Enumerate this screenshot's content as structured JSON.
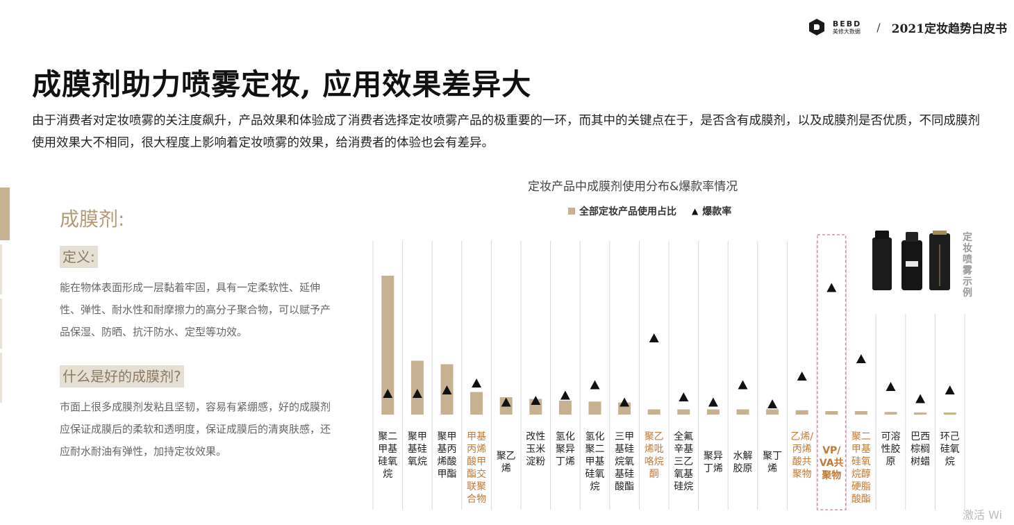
{
  "brand": {
    "logo_en": "BEBD",
    "logo_cn": "美修大数据",
    "separator": "/",
    "report_title": "2021定妆趋势白皮书"
  },
  "title": "成膜剂助力喷雾定妆, 应用效果差异大",
  "intro": "由于消费者对定妆喷雾的关注度飙升，产品效果和体验成了消费者选择定妆喷雾产品的极重要的一环，而其中的关键点在于，是否含有成膜剂，以及成膜剂是否优质，不同成膜剂使用效果大不相同，很大程度上影响着定妆喷雾的效果，给消费者的体验也会有差异。",
  "definition": {
    "heading": "成膜剂:",
    "tag1": "定义:",
    "text1": "能在物体表面形成一层黏着牢固，具有一定柔软性、延伸性、弹性、耐水性和耐摩擦力的高分子聚合物，可以赋予产品保湿、防晒、抗汗防水、定型等功效。",
    "tag2": "什么是好的成膜剂?",
    "text2": "市面上很多成膜剂发粘且坚韧，容易有紧绷感，好的成膜剂应保证成膜后的柔软和透明度，保证成膜后的清爽肤感，还应耐水耐油有弹性，加持定妆效果。"
  },
  "side_label": "定妆喷雾示例",
  "watermark": "激活 Wi",
  "colors": {
    "bar": "#c7b191",
    "highlight_text": "#c07a3a",
    "focus_box": "#d98aa8",
    "marker": "#111111"
  },
  "chart_data": {
    "type": "bar",
    "title": "定妆产品中成膜剂使用分布&爆款率情况",
    "legend_position": "top-center",
    "grid": false,
    "ylim": [
      0,
      100
    ],
    "categories": [
      "聚二甲基硅氧烷",
      "聚甲基硅氧烷",
      "聚甲基丙烯酸甲酯",
      "甲基丙烯酸甲酯交联聚合物",
      "聚乙烯",
      "改性玉米淀粉",
      "氢化聚异丁烯",
      "氢化聚二甲基硅氧烷",
      "三甲基硅烷氧基硅酸酯",
      "聚乙烯吡咯烷酮",
      "全氟辛基三乙氧基硅烷",
      "聚异丁烯",
      "水解胶原",
      "聚丁烯",
      "乙烯/丙烯酸共聚物",
      "VP/VA共聚物",
      "聚二甲基硅氧烷醇硬脂酸酯",
      "可溶性胶原",
      "巴西棕榈树蜡",
      "环己硅氧烷"
    ],
    "category_style": [
      "normal",
      "normal",
      "normal",
      "highlight",
      "normal",
      "normal",
      "normal",
      "normal",
      "normal",
      "highlight",
      "normal",
      "normal",
      "normal",
      "normal",
      "highlight",
      "focus",
      "highlight",
      "normal",
      "normal",
      "normal"
    ],
    "series": [
      {
        "name": "全部定妆产品使用占比",
        "kind": "bar",
        "values": [
          80,
          31,
          29,
          13,
          10,
          9,
          8,
          7.5,
          7,
          3,
          3,
          3,
          3,
          3,
          2.5,
          2,
          2,
          1.5,
          1.2,
          1.2
        ]
      },
      {
        "name": "爆款率",
        "kind": "marker",
        "values": [
          12,
          12,
          14,
          18,
          7,
          8,
          11,
          17,
          7,
          44,
          10,
          7,
          17,
          6,
          22,
          73,
          32,
          16,
          9,
          14
        ]
      }
    ]
  }
}
